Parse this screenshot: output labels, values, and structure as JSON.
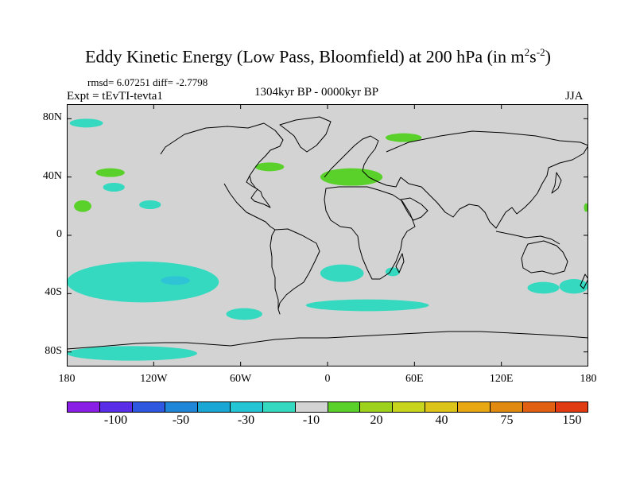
{
  "title": {
    "main": "Eddy Kinetic Energy (Low Pass, Bloomfield) at 200 hPa (in m",
    "sup1": "2",
    "mid": "s",
    "sup2": "-2",
    "end": ")"
  },
  "stats": "rmsd= 6.07251 diff= -2.7798",
  "experiment": "Expt = tEvTI-tevta1",
  "period": "1304kyr BP - 0000kyr BP",
  "season": "JJA",
  "map": {
    "projection": "cylindrical equidistant",
    "lon_range": [
      -180,
      180
    ],
    "lat_range": [
      -90,
      90
    ],
    "background_color": "#d3d3d3",
    "coastline_color": "#000000",
    "y_ticks": [
      {
        "lat": 80,
        "label": "80N"
      },
      {
        "lat": 40,
        "label": "40N"
      },
      {
        "lat": 0,
        "label": "0"
      },
      {
        "lat": -40,
        "label": "40S"
      },
      {
        "lat": -80,
        "label": "80S"
      }
    ],
    "x_ticks": [
      {
        "lon": -180,
        "label": "180"
      },
      {
        "lon": -120,
        "label": "120W"
      },
      {
        "lon": -60,
        "label": "60W"
      },
      {
        "lon": 0,
        "label": "0"
      },
      {
        "lon": 60,
        "label": "60E"
      },
      {
        "lon": 120,
        "label": "120E"
      },
      {
        "lon": 180,
        "label": "180"
      }
    ],
    "anomaly_patches": [
      {
        "category": "-10 to -30",
        "lon": [
          -178,
          -155
        ],
        "lat": [
          74,
          80
        ],
        "color": "#35d9c0"
      },
      {
        "category": "20 to 30",
        "lon": [
          -160,
          -140
        ],
        "lat": [
          40,
          46
        ],
        "color": "#5ad12a"
      },
      {
        "category": "-10 to -30",
        "lon": [
          -155,
          -140
        ],
        "lat": [
          30,
          36
        ],
        "color": "#35d9c0"
      },
      {
        "category": "20 to 30",
        "lon": [
          -175,
          -163
        ],
        "lat": [
          16,
          24
        ],
        "color": "#5ad12a"
      },
      {
        "category": "-10 to -30",
        "lon": [
          -130,
          -115
        ],
        "lat": [
          18,
          24
        ],
        "color": "#35d9c0"
      },
      {
        "category": "20 to 30",
        "lon": [
          -50,
          -30
        ],
        "lat": [
          44,
          50
        ],
        "color": "#5ad12a"
      },
      {
        "category": "20 to 30",
        "lon": [
          40,
          65
        ],
        "lat": [
          64,
          70
        ],
        "color": "#5ad12a"
      },
      {
        "category": "20 to 30",
        "lon": [
          -5,
          38
        ],
        "lat": [
          34,
          46
        ],
        "color": "#5ad12a"
      },
      {
        "category": "-10 to -30",
        "lon": [
          -180,
          -75
        ],
        "lat": [
          -46,
          -18
        ],
        "color": "#35d9c0"
      },
      {
        "category": "-30 to -50",
        "lon": [
          -115,
          -95
        ],
        "lat": [
          -34,
          -28
        ],
        "color": "#2fc3d6"
      },
      {
        "category": "-10 to -30",
        "lon": [
          -70,
          -45
        ],
        "lat": [
          -58,
          -50
        ],
        "color": "#35d9c0"
      },
      {
        "category": "-10 to -30",
        "lon": [
          -180,
          -90
        ],
        "lat": [
          -86,
          -76
        ],
        "color": "#35d9c0"
      },
      {
        "category": "-10 to -30",
        "lon": [
          -5,
          25
        ],
        "lat": [
          -32,
          -20
        ],
        "color": "#35d9c0"
      },
      {
        "category": "-10 to -30",
        "lon": [
          -15,
          70
        ],
        "lat": [
          -52,
          -44
        ],
        "color": "#35d9c0"
      },
      {
        "category": "-10 to -30",
        "lon": [
          40,
          50
        ],
        "lat": [
          -28,
          -22
        ],
        "color": "#35d9c0"
      },
      {
        "category": "-10 to -30",
        "lon": [
          138,
          160
        ],
        "lat": [
          -40,
          -32
        ],
        "color": "#35d9c0"
      },
      {
        "category": "-10 to -30",
        "lon": [
          160,
          180
        ],
        "lat": [
          -40,
          -30
        ],
        "color": "#35d9c0"
      },
      {
        "category": "20 to 30",
        "lon": [
          177,
          180
        ],
        "lat": [
          16,
          22
        ],
        "color": "#5ad12a"
      }
    ]
  },
  "colorbar": {
    "colors": [
      "#8a1ee6",
      "#5a2ee8",
      "#2e58e0",
      "#1f86d8",
      "#1aa7d6",
      "#24c6d6",
      "#35d9c0",
      "#d3d3d3",
      "#5ad12a",
      "#9ed11c",
      "#c8d51e",
      "#dcc41a",
      "#e8a814",
      "#e08a12",
      "#e26012",
      "#e03a12"
    ],
    "labels": [
      "-100",
      "-50",
      "-30",
      "-10",
      "20",
      "40",
      "75",
      "150"
    ],
    "label_at_boundary": [
      2,
      4,
      6,
      8,
      10,
      12,
      14,
      16
    ]
  }
}
